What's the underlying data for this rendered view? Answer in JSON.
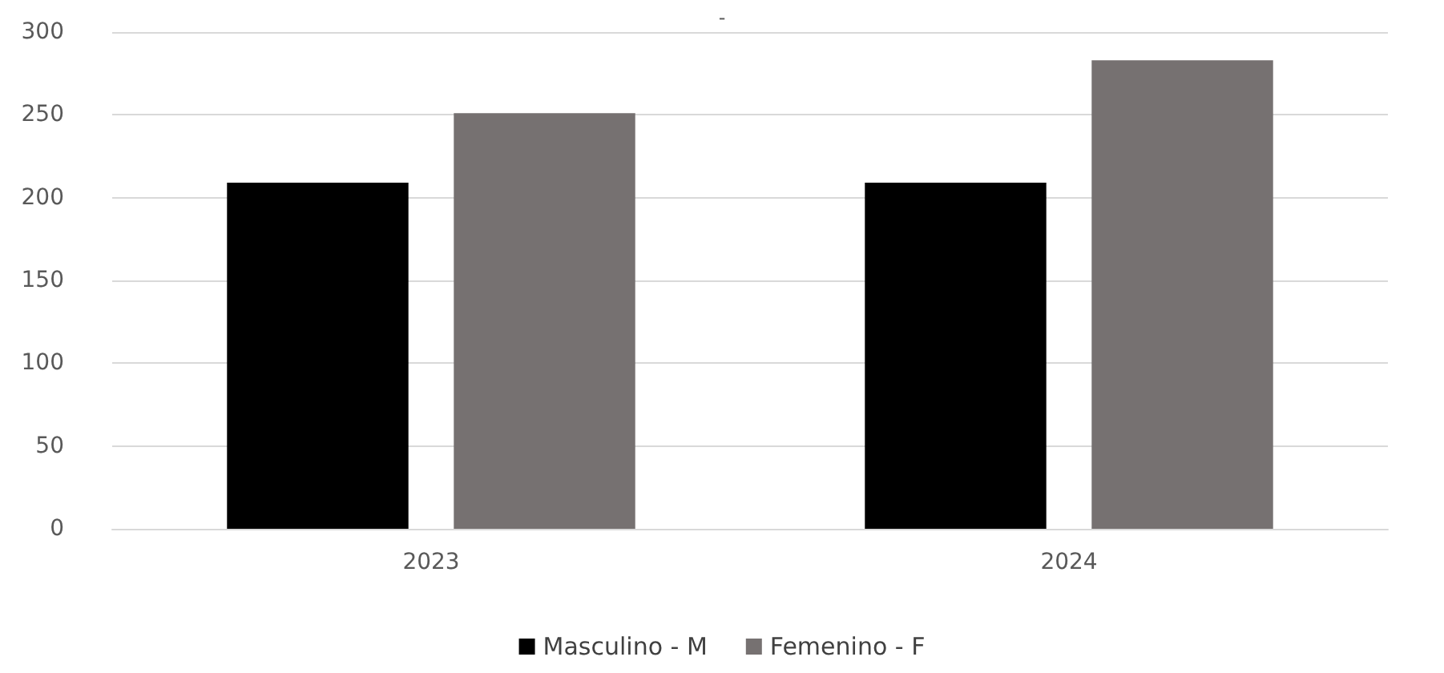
{
  "chart_data": {
    "type": "bar",
    "title": "-",
    "categories": [
      "2023",
      "2024"
    ],
    "series": [
      {
        "name": "Masculino - M",
        "color": "#000000",
        "values": [
          209,
          209
        ]
      },
      {
        "name": "Femenino - F",
        "color": "#767171",
        "values": [
          251,
          283
        ]
      }
    ],
    "ylim": [
      0,
      300
    ],
    "yticks": [
      0,
      50,
      100,
      150,
      200,
      250,
      300
    ],
    "grid": "y",
    "legend": "bottom"
  }
}
